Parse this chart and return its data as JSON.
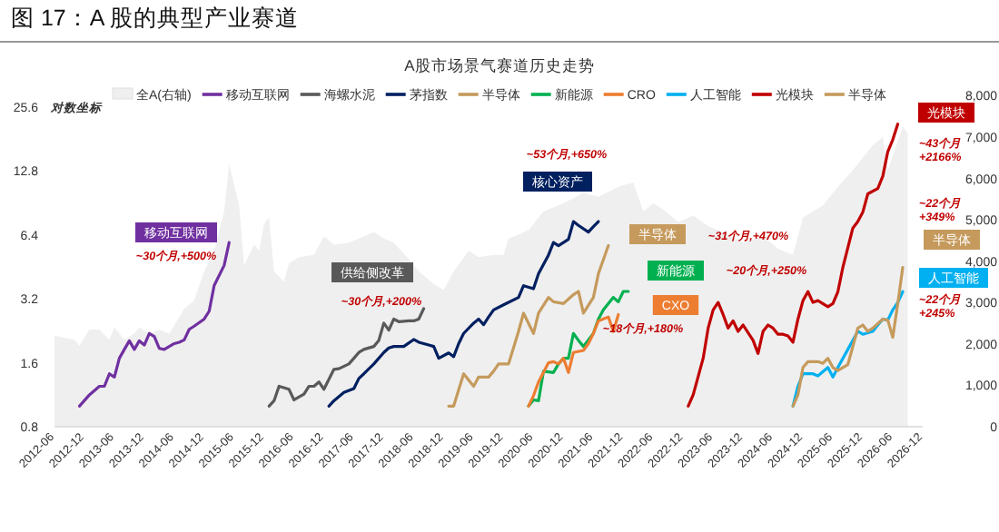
{
  "chart_data": {
    "type": "line",
    "title": "图 17：A 股的典型产业赛道",
    "subtitle": "A股市场景气赛道历史走势",
    "ylabel": "对数坐标",
    "log": "y",
    "ylim": [
      0.8,
      25.6
    ],
    "yticks": [
      0.8,
      1.6,
      3.2,
      6.4,
      12.8,
      25.6
    ],
    "y2lim": [
      0,
      8000
    ],
    "y2ticks": [
      0,
      {
        "value": 1000,
        "label": "1,000"
      },
      {
        "value": 2000,
        "label": "2,000"
      },
      {
        "value": 3000,
        "label": "3,000"
      },
      {
        "value": 4000,
        "label": "4,000"
      },
      {
        "value": 5000,
        "label": "5,000"
      },
      {
        "value": 6000,
        "label": "6,000"
      },
      {
        "value": 7000,
        "label": "7,000"
      },
      {
        "value": 8000,
        "label": "8,000"
      }
    ],
    "xlim": [
      "2012-06",
      "2026-12"
    ],
    "xticks": [
      "2012-06",
      "2012-12",
      "2013-06",
      "2013-12",
      "2014-06",
      "2014-12",
      "2015-06",
      "2015-12",
      "2016-06",
      "2016-12",
      "2017-06",
      "2017-12",
      "2018-06",
      "2018-12",
      "2019-06",
      "2019-12",
      "2020-06",
      "2020-12",
      "2021-06",
      "2021-12",
      "2022-06",
      "2022-12",
      "2023-06",
      "2023-12",
      "2024-06",
      "2024-12",
      "2025-06",
      "2025-12",
      "2026-06",
      "2026-12"
    ],
    "legend": "top",
    "annotations": [
      "移动互联网",
      "~30个月,+500%",
      "供给侧改革",
      "~30个月,+200%",
      "核心资产",
      "~53个月,+650%",
      "半导体",
      "~31个月,+470%",
      "新能源",
      "~20个月,+250%",
      "CXO",
      "~18个月,+180%",
      "光模块",
      "~43个月\n+2166%",
      "~22个月\n+349%",
      "半导体",
      "人工智能",
      "~22个月\n+245%"
    ],
    "series": [
      {
        "name": "全A(右轴)",
        "type": "area",
        "axis": "y2",
        "color": "#efefef",
        "x": [
          "2012-06",
          "2012-10",
          "2012-11",
          "2013-01",
          "2013-03",
          "2013-05",
          "2013-06",
          "2013-08",
          "2013-10",
          "2013-11",
          "2014-01",
          "2014-03",
          "2014-05",
          "2014-07",
          "2014-08",
          "2014-10",
          "2014-12",
          "2015-02",
          "2015-04",
          "2015-05",
          "2015-07",
          "2015-08",
          "2015-10",
          "2015-11",
          "2015-12",
          "2016-01",
          "2016-02",
          "2016-04",
          "2016-05",
          "2016-07",
          "2016-10",
          "2016-12",
          "2017-02",
          "2017-05",
          "2017-07",
          "2017-10",
          "2017-12",
          "2018-02",
          "2018-05",
          "2018-07",
          "2018-10",
          "2018-12",
          "2019-02",
          "2019-05",
          "2019-07",
          "2019-10",
          "2019-12",
          "2020-01",
          "2020-05",
          "2020-08",
          "2020-12",
          "2021-04",
          "2021-07",
          "2021-11",
          "2022-02",
          "2022-04",
          "2022-06",
          "2022-08",
          "2022-11",
          "2023-02",
          "2023-05",
          "2023-08",
          "2023-12",
          "2024-04",
          "2024-07",
          "2024-10",
          "2024-12",
          "2025-04",
          "2025-07",
          "2025-10",
          "2025-12",
          "2026-02",
          "2026-04",
          "2026-05",
          "2026-08",
          "2026-09"
        ],
        "values": [
          2200,
          2100,
          1950,
          2350,
          2350,
          2100,
          2400,
          2100,
          2250,
          2400,
          2250,
          2350,
          2250,
          2650,
          2850,
          3050,
          3750,
          4250,
          5200,
          6350,
          5350,
          3900,
          4400,
          4250,
          4900,
          5050,
          3750,
          3500,
          3950,
          4100,
          4150,
          4600,
          4400,
          4450,
          4550,
          4700,
          4550,
          4450,
          4050,
          3750,
          3450,
          3300,
          3750,
          4250,
          4100,
          4150,
          4150,
          4550,
          4750,
          5200,
          5400,
          5650,
          5550,
          5800,
          5900,
          5200,
          5400,
          5250,
          4950,
          5100,
          4850,
          4700,
          4450,
          4600,
          4300,
          4150,
          5050,
          5350,
          5800,
          6200,
          6500,
          6800,
          7000,
          6200,
          7250,
          7100
        ]
      },
      {
        "name": "移动互联网",
        "color": "#7030a0",
        "x": [
          "2012-11",
          "2013-01",
          "2013-03",
          "2013-04",
          "2013-05",
          "2013-06",
          "2013-07",
          "2013-08",
          "2013-09",
          "2013-10",
          "2013-11",
          "2013-12",
          "2014-01",
          "2014-02",
          "2014-03",
          "2014-04",
          "2014-06",
          "2014-07",
          "2014-08",
          "2014-09",
          "2014-10",
          "2014-12",
          "2015-01",
          "2015-02",
          "2015-04",
          "2015-05"
        ],
        "values": [
          1.0,
          1.13,
          1.24,
          1.24,
          1.42,
          1.37,
          1.68,
          1.85,
          2.03,
          1.85,
          2.03,
          1.94,
          2.2,
          2.13,
          1.87,
          1.85,
          1.97,
          2.0,
          2.05,
          2.3,
          2.38,
          2.57,
          2.8,
          3.7,
          4.6,
          5.9
        ]
      },
      {
        "name": "海螺水泥",
        "color": "#595959",
        "x": [
          "2016-01",
          "2016-02",
          "2016-03",
          "2016-05",
          "2016-06",
          "2016-08",
          "2016-09",
          "2016-10",
          "2016-11",
          "2016-12",
          "2017-02",
          "2017-03",
          "2017-05",
          "2017-06",
          "2017-07",
          "2017-08",
          "2017-10",
          "2017-11",
          "2017-12",
          "2018-01",
          "2018-02",
          "2018-03",
          "2018-05",
          "2018-06",
          "2018-07",
          "2018-08"
        ],
        "values": [
          1.0,
          1.06,
          1.24,
          1.2,
          1.07,
          1.14,
          1.24,
          1.24,
          1.3,
          1.2,
          1.49,
          1.5,
          1.58,
          1.68,
          1.79,
          1.85,
          1.91,
          2.04,
          2.46,
          2.28,
          2.57,
          2.5,
          2.52,
          2.52,
          2.57,
          2.88
        ]
      },
      {
        "name": "茅指数",
        "color": "#002060",
        "x": [
          "2017-01",
          "2017-02",
          "2017-04",
          "2017-06",
          "2017-07",
          "2017-08",
          "2017-10",
          "2017-12",
          "2018-01",
          "2018-02",
          "2018-04",
          "2018-06",
          "2018-07",
          "2018-09",
          "2018-10",
          "2018-11",
          "2019-01",
          "2019-02",
          "2019-03",
          "2019-04",
          "2019-06",
          "2019-07",
          "2019-08",
          "2019-09",
          "2019-10",
          "2019-12",
          "2020-03",
          "2020-04",
          "2020-06",
          "2020-07",
          "2020-09",
          "2020-10",
          "2020-11",
          "2020-12",
          "2021-01",
          "2021-02",
          "2021-03",
          "2021-05",
          "2021-06",
          "2021-07"
        ],
        "values": [
          1.0,
          1.06,
          1.16,
          1.21,
          1.35,
          1.42,
          1.58,
          1.79,
          1.88,
          1.91,
          1.91,
          2.06,
          2.0,
          1.94,
          1.91,
          1.68,
          1.78,
          1.71,
          1.97,
          2.2,
          2.46,
          2.57,
          2.42,
          2.63,
          2.84,
          3.0,
          3.25,
          3.69,
          3.57,
          4.2,
          5.15,
          5.9,
          5.7,
          5.9,
          6.1,
          7.4,
          7.1,
          6.6,
          7.0,
          7.4
        ]
      },
      {
        "name": "半导体",
        "color": "#c59a5c",
        "x": [
          "2019-01",
          "2019-02",
          "2019-04",
          "2019-06",
          "2019-07",
          "2019-09",
          "2019-10",
          "2019-11",
          "2020-01",
          "2020-03",
          "2020-04",
          "2020-06",
          "2020-07",
          "2020-09",
          "2020-10",
          "2020-12",
          "2021-02",
          "2021-03",
          "2021-04",
          "2021-06",
          "2021-07",
          "2021-09"
        ],
        "values": [
          1.0,
          1.0,
          1.42,
          1.24,
          1.37,
          1.37,
          1.46,
          1.58,
          1.58,
          2.25,
          2.74,
          2.2,
          2.74,
          3.25,
          3.1,
          3.04,
          3.35,
          3.47,
          2.74,
          3.25,
          4.2,
          5.7
        ]
      },
      {
        "name": "新能源",
        "color": "#00b050",
        "x": [
          "2020-05",
          "2020-06",
          "2020-07",
          "2020-08",
          "2020-10",
          "2020-11",
          "2020-12",
          "2021-01",
          "2021-02",
          "2021-03",
          "2021-04",
          "2021-06",
          "2021-07",
          "2021-08",
          "2021-10",
          "2021-11",
          "2021-12",
          "2022-01"
        ],
        "values": [
          1.0,
          1.07,
          1.06,
          1.46,
          1.44,
          1.58,
          1.68,
          1.68,
          2.2,
          2.04,
          1.91,
          2.2,
          2.57,
          2.84,
          3.25,
          3.1,
          3.47,
          3.47
        ]
      },
      {
        "name": "CRO",
        "color": "#ed7d31",
        "x": [
          "2020-05",
          "2020-06",
          "2020-07",
          "2020-09",
          "2020-10",
          "2020-11",
          "2020-12",
          "2021-01",
          "2021-02",
          "2021-04",
          "2021-05",
          "2021-06",
          "2021-07",
          "2021-09",
          "2021-10",
          "2021-11"
        ],
        "values": [
          1.0,
          1.12,
          1.3,
          1.6,
          1.62,
          1.58,
          1.68,
          1.44,
          1.79,
          1.83,
          1.97,
          2.2,
          2.52,
          2.63,
          2.25,
          2.7
        ]
      },
      {
        "name": "人工智能",
        "color": "#00b0f0",
        "x": [
          "2024-10",
          "2024-11",
          "2024-12",
          "2025-02",
          "2025-03",
          "2025-05",
          "2025-06",
          "2025-07",
          "2025-09",
          "2025-11",
          "2025-12",
          "2026-02",
          "2026-03",
          "2026-04",
          "2026-05",
          "2026-06",
          "2026-07",
          "2026-08"
        ],
        "values": [
          1.0,
          1.24,
          1.42,
          1.42,
          1.39,
          1.52,
          1.37,
          1.52,
          1.85,
          2.25,
          2.18,
          2.25,
          2.41,
          2.57,
          2.54,
          2.84,
          3.08,
          3.46
        ]
      },
      {
        "name": "光模块",
        "color": "#c00000",
        "x": [
          "2023-01",
          "2023-02",
          "2023-04",
          "2023-05",
          "2023-06",
          "2023-07",
          "2023-08",
          "2023-09",
          "2023-10",
          "2023-11",
          "2023-12",
          "2024-02",
          "2024-03",
          "2024-04",
          "2024-05",
          "2024-06",
          "2024-07",
          "2024-08",
          "2024-09",
          "2024-10",
          "2024-11",
          "2024-12",
          "2025-01",
          "2025-02",
          "2025-03",
          "2025-05",
          "2025-06",
          "2025-07",
          "2025-08",
          "2025-10",
          "2025-11",
          "2025-12",
          "2026-01",
          "2026-03",
          "2026-04",
          "2026-05",
          "2026-06",
          "2026-07"
        ],
        "values": [
          1.0,
          1.13,
          1.68,
          2.33,
          2.84,
          3.08,
          2.7,
          2.33,
          2.52,
          2.25,
          2.41,
          2.04,
          1.77,
          2.25,
          2.41,
          2.33,
          2.18,
          2.18,
          2.14,
          2.0,
          2.57,
          3.14,
          3.46,
          3.08,
          3.14,
          2.94,
          3.04,
          3.46,
          4.51,
          6.9,
          7.4,
          8.2,
          10,
          10.6,
          12.1,
          15.8,
          18,
          21.3
        ]
      },
      {
        "name": "半导体",
        "color": "#c59a5c",
        "x": [
          "2024-10",
          "2024-11",
          "2024-12",
          "2025-01",
          "2025-03",
          "2025-04",
          "2025-05",
          "2025-06",
          "2025-07",
          "2025-09",
          "2025-10",
          "2025-11",
          "2025-12",
          "2026-01",
          "2026-02",
          "2026-04",
          "2026-05",
          "2026-06",
          "2026-07",
          "2026-08"
        ],
        "values": [
          1.0,
          1.13,
          1.52,
          1.62,
          1.62,
          1.59,
          1.68,
          1.52,
          1.47,
          1.57,
          1.91,
          2.33,
          2.41,
          2.25,
          2.33,
          2.57,
          2.54,
          2.11,
          3.04,
          4.5
        ]
      }
    ]
  }
}
